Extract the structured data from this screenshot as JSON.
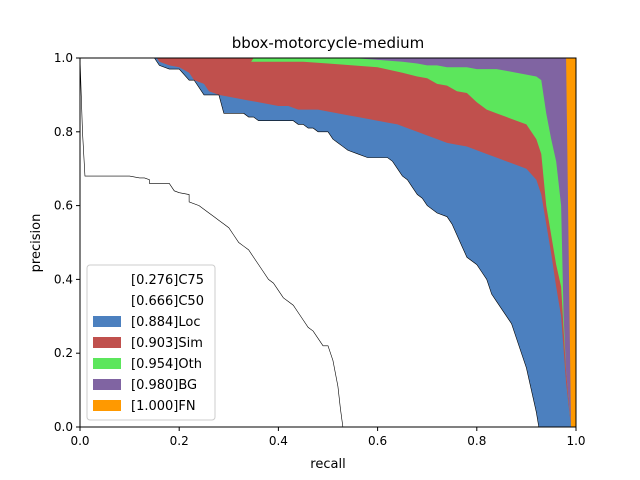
{
  "chart_data": {
    "type": "area",
    "title": "bbox-motorcycle-medium",
    "xlabel": "recall",
    "ylabel": "precision",
    "xlim": [
      0,
      1
    ],
    "ylim": [
      0,
      1
    ],
    "xticks": [
      "0.0",
      "0.2",
      "0.4",
      "0.6",
      "0.8",
      "1.0"
    ],
    "yticks": [
      "0.0",
      "0.2",
      "0.4",
      "0.6",
      "0.8",
      "1.0"
    ],
    "grid": false,
    "legend_position": "lower-left",
    "legend": [
      {
        "label": "[0.276]C75",
        "color": "#ffffff"
      },
      {
        "label": "[0.666]C50",
        "color": "#ffffff"
      },
      {
        "label": "[0.884]Loc",
        "color": "#4c80bf"
      },
      {
        "label": "[0.903]Sim",
        "color": "#c0504d"
      },
      {
        "label": "[0.954]Oth",
        "color": "#5ce65c"
      },
      {
        "label": "[0.980]BG",
        "color": "#8064a2"
      },
      {
        "label": "[1.000]FN",
        "color": "#ff9900"
      }
    ],
    "series": [
      {
        "key": "FN",
        "fill": "#ff9900",
        "points": [
          [
            0,
            1
          ],
          [
            1,
            1
          ]
        ]
      },
      {
        "key": "BG",
        "fill": "#8064a2",
        "points": [
          [
            0,
            1
          ],
          [
            0.9,
            1
          ],
          [
            0.93,
            1
          ],
          [
            0.95,
            1
          ],
          [
            0.96,
            1
          ],
          [
            0.97,
            1
          ],
          [
            0.98,
            1
          ],
          [
            0.985,
            0.5
          ],
          [
            0.99,
            0
          ]
        ]
      },
      {
        "key": "Oth",
        "fill": "#5ce65c",
        "points": [
          [
            0,
            1
          ],
          [
            0.5,
            1
          ],
          [
            0.55,
            1
          ],
          [
            0.6,
            0.995
          ],
          [
            0.65,
            0.99
          ],
          [
            0.68,
            0.985
          ],
          [
            0.7,
            0.98
          ],
          [
            0.72,
            0.98
          ],
          [
            0.74,
            0.975
          ],
          [
            0.76,
            0.975
          ],
          [
            0.78,
            0.975
          ],
          [
            0.8,
            0.97
          ],
          [
            0.82,
            0.97
          ],
          [
            0.84,
            0.97
          ],
          [
            0.86,
            0.965
          ],
          [
            0.88,
            0.96
          ],
          [
            0.9,
            0.955
          ],
          [
            0.92,
            0.95
          ],
          [
            0.93,
            0.94
          ],
          [
            0.94,
            0.85
          ],
          [
            0.95,
            0.78
          ],
          [
            0.96,
            0.72
          ],
          [
            0.97,
            0.6
          ],
          [
            0.975,
            0.3
          ],
          [
            0.98,
            0.15
          ],
          [
            0.99,
            0
          ]
        ]
      },
      {
        "key": "Sim",
        "fill": "#c0504d",
        "points": [
          [
            0,
            1
          ],
          [
            0.35,
            1
          ],
          [
            0.345,
            0.99
          ],
          [
            0.4,
            0.99
          ],
          [
            0.45,
            0.99
          ],
          [
            0.5,
            0.985
          ],
          [
            0.55,
            0.98
          ],
          [
            0.6,
            0.975
          ],
          [
            0.65,
            0.96
          ],
          [
            0.68,
            0.95
          ],
          [
            0.7,
            0.945
          ],
          [
            0.72,
            0.93
          ],
          [
            0.74,
            0.925
          ],
          [
            0.76,
            0.91
          ],
          [
            0.78,
            0.905
          ],
          [
            0.8,
            0.88
          ],
          [
            0.82,
            0.86
          ],
          [
            0.84,
            0.85
          ],
          [
            0.86,
            0.84
          ],
          [
            0.88,
            0.83
          ],
          [
            0.9,
            0.82
          ],
          [
            0.92,
            0.78
          ],
          [
            0.93,
            0.74
          ],
          [
            0.94,
            0.6
          ],
          [
            0.95,
            0.52
          ],
          [
            0.96,
            0.44
          ],
          [
            0.97,
            0.38
          ],
          [
            0.98,
            0.15
          ],
          [
            0.99,
            0
          ]
        ]
      },
      {
        "key": "Loc",
        "fill": "#4c80bf",
        "points": [
          [
            0,
            1
          ],
          [
            0.155,
            1
          ],
          [
            0.16,
            0.99
          ],
          [
            0.18,
            0.98
          ],
          [
            0.2,
            0.975
          ],
          [
            0.22,
            0.96
          ],
          [
            0.23,
            0.94
          ],
          [
            0.25,
            0.93
          ],
          [
            0.26,
            0.91
          ],
          [
            0.28,
            0.9
          ],
          [
            0.3,
            0.895
          ],
          [
            0.32,
            0.89
          ],
          [
            0.34,
            0.885
          ],
          [
            0.36,
            0.88
          ],
          [
            0.38,
            0.875
          ],
          [
            0.4,
            0.87
          ],
          [
            0.42,
            0.87
          ],
          [
            0.44,
            0.86
          ],
          [
            0.46,
            0.86
          ],
          [
            0.48,
            0.86
          ],
          [
            0.5,
            0.855
          ],
          [
            0.52,
            0.85
          ],
          [
            0.54,
            0.845
          ],
          [
            0.56,
            0.84
          ],
          [
            0.58,
            0.835
          ],
          [
            0.6,
            0.83
          ],
          [
            0.62,
            0.825
          ],
          [
            0.64,
            0.82
          ],
          [
            0.66,
            0.81
          ],
          [
            0.68,
            0.8
          ],
          [
            0.7,
            0.79
          ],
          [
            0.72,
            0.78
          ],
          [
            0.74,
            0.77
          ],
          [
            0.76,
            0.765
          ],
          [
            0.78,
            0.76
          ],
          [
            0.8,
            0.75
          ],
          [
            0.82,
            0.74
          ],
          [
            0.84,
            0.73
          ],
          [
            0.86,
            0.72
          ],
          [
            0.88,
            0.71
          ],
          [
            0.9,
            0.7
          ],
          [
            0.92,
            0.67
          ],
          [
            0.93,
            0.63
          ],
          [
            0.94,
            0.55
          ],
          [
            0.95,
            0.47
          ],
          [
            0.96,
            0.38
          ],
          [
            0.97,
            0.3
          ],
          [
            0.98,
            0.12
          ],
          [
            0.99,
            0
          ]
        ]
      },
      {
        "key": "C50",
        "fill": "#ffffff",
        "stroke": "#000000",
        "points": [
          [
            0,
            1
          ],
          [
            0.15,
            1
          ],
          [
            0.16,
            0.98
          ],
          [
            0.18,
            0.97
          ],
          [
            0.2,
            0.97
          ],
          [
            0.22,
            0.94
          ],
          [
            0.23,
            0.94
          ],
          [
            0.25,
            0.9
          ],
          [
            0.28,
            0.9
          ],
          [
            0.29,
            0.85
          ],
          [
            0.33,
            0.85
          ],
          [
            0.34,
            0.84
          ],
          [
            0.35,
            0.84
          ],
          [
            0.36,
            0.83
          ],
          [
            0.43,
            0.83
          ],
          [
            0.44,
            0.82
          ],
          [
            0.45,
            0.82
          ],
          [
            0.46,
            0.81
          ],
          [
            0.47,
            0.81
          ],
          [
            0.48,
            0.8
          ],
          [
            0.5,
            0.8
          ],
          [
            0.51,
            0.78
          ],
          [
            0.52,
            0.77
          ],
          [
            0.53,
            0.76
          ],
          [
            0.54,
            0.75
          ],
          [
            0.56,
            0.74
          ],
          [
            0.58,
            0.73
          ],
          [
            0.62,
            0.73
          ],
          [
            0.63,
            0.72
          ],
          [
            0.64,
            0.7
          ],
          [
            0.65,
            0.68
          ],
          [
            0.66,
            0.67
          ],
          [
            0.67,
            0.65
          ],
          [
            0.68,
            0.63
          ],
          [
            0.69,
            0.62
          ],
          [
            0.7,
            0.6
          ],
          [
            0.72,
            0.58
          ],
          [
            0.74,
            0.57
          ],
          [
            0.75,
            0.55
          ],
          [
            0.76,
            0.52
          ],
          [
            0.77,
            0.49
          ],
          [
            0.78,
            0.46
          ],
          [
            0.8,
            0.44
          ],
          [
            0.81,
            0.42
          ],
          [
            0.82,
            0.4
          ],
          [
            0.83,
            0.36
          ],
          [
            0.84,
            0.34
          ],
          [
            0.85,
            0.32
          ],
          [
            0.86,
            0.3
          ],
          [
            0.87,
            0.28
          ],
          [
            0.88,
            0.24
          ],
          [
            0.89,
            0.2
          ],
          [
            0.9,
            0.16
          ],
          [
            0.91,
            0.1
          ],
          [
            0.92,
            0.04
          ],
          [
            0.925,
            0
          ]
        ]
      },
      {
        "key": "C75",
        "fill": "#ffffff",
        "stroke": "#000000",
        "points": [
          [
            0,
            1
          ],
          [
            0.005,
            0.8
          ],
          [
            0.01,
            0.68
          ],
          [
            0.08,
            0.68
          ],
          [
            0.1,
            0.68
          ],
          [
            0.12,
            0.675
          ],
          [
            0.13,
            0.675
          ],
          [
            0.14,
            0.67
          ],
          [
            0.14,
            0.66
          ],
          [
            0.18,
            0.66
          ],
          [
            0.19,
            0.64
          ],
          [
            0.2,
            0.635
          ],
          [
            0.22,
            0.63
          ],
          [
            0.22,
            0.61
          ],
          [
            0.24,
            0.6
          ],
          [
            0.26,
            0.58
          ],
          [
            0.27,
            0.57
          ],
          [
            0.28,
            0.56
          ],
          [
            0.29,
            0.55
          ],
          [
            0.3,
            0.54
          ],
          [
            0.31,
            0.52
          ],
          [
            0.32,
            0.5
          ],
          [
            0.33,
            0.49
          ],
          [
            0.34,
            0.48
          ],
          [
            0.35,
            0.46
          ],
          [
            0.36,
            0.44
          ],
          [
            0.37,
            0.42
          ],
          [
            0.38,
            0.4
          ],
          [
            0.39,
            0.39
          ],
          [
            0.4,
            0.37
          ],
          [
            0.41,
            0.35
          ],
          [
            0.42,
            0.34
          ],
          [
            0.43,
            0.33
          ],
          [
            0.44,
            0.31
          ],
          [
            0.45,
            0.29
          ],
          [
            0.46,
            0.27
          ],
          [
            0.47,
            0.26
          ],
          [
            0.48,
            0.24
          ],
          [
            0.49,
            0.22
          ],
          [
            0.5,
            0.22
          ],
          [
            0.505,
            0.2
          ],
          [
            0.51,
            0.18
          ],
          [
            0.52,
            0.11
          ],
          [
            0.525,
            0.05
          ],
          [
            0.53,
            0
          ]
        ]
      }
    ]
  }
}
